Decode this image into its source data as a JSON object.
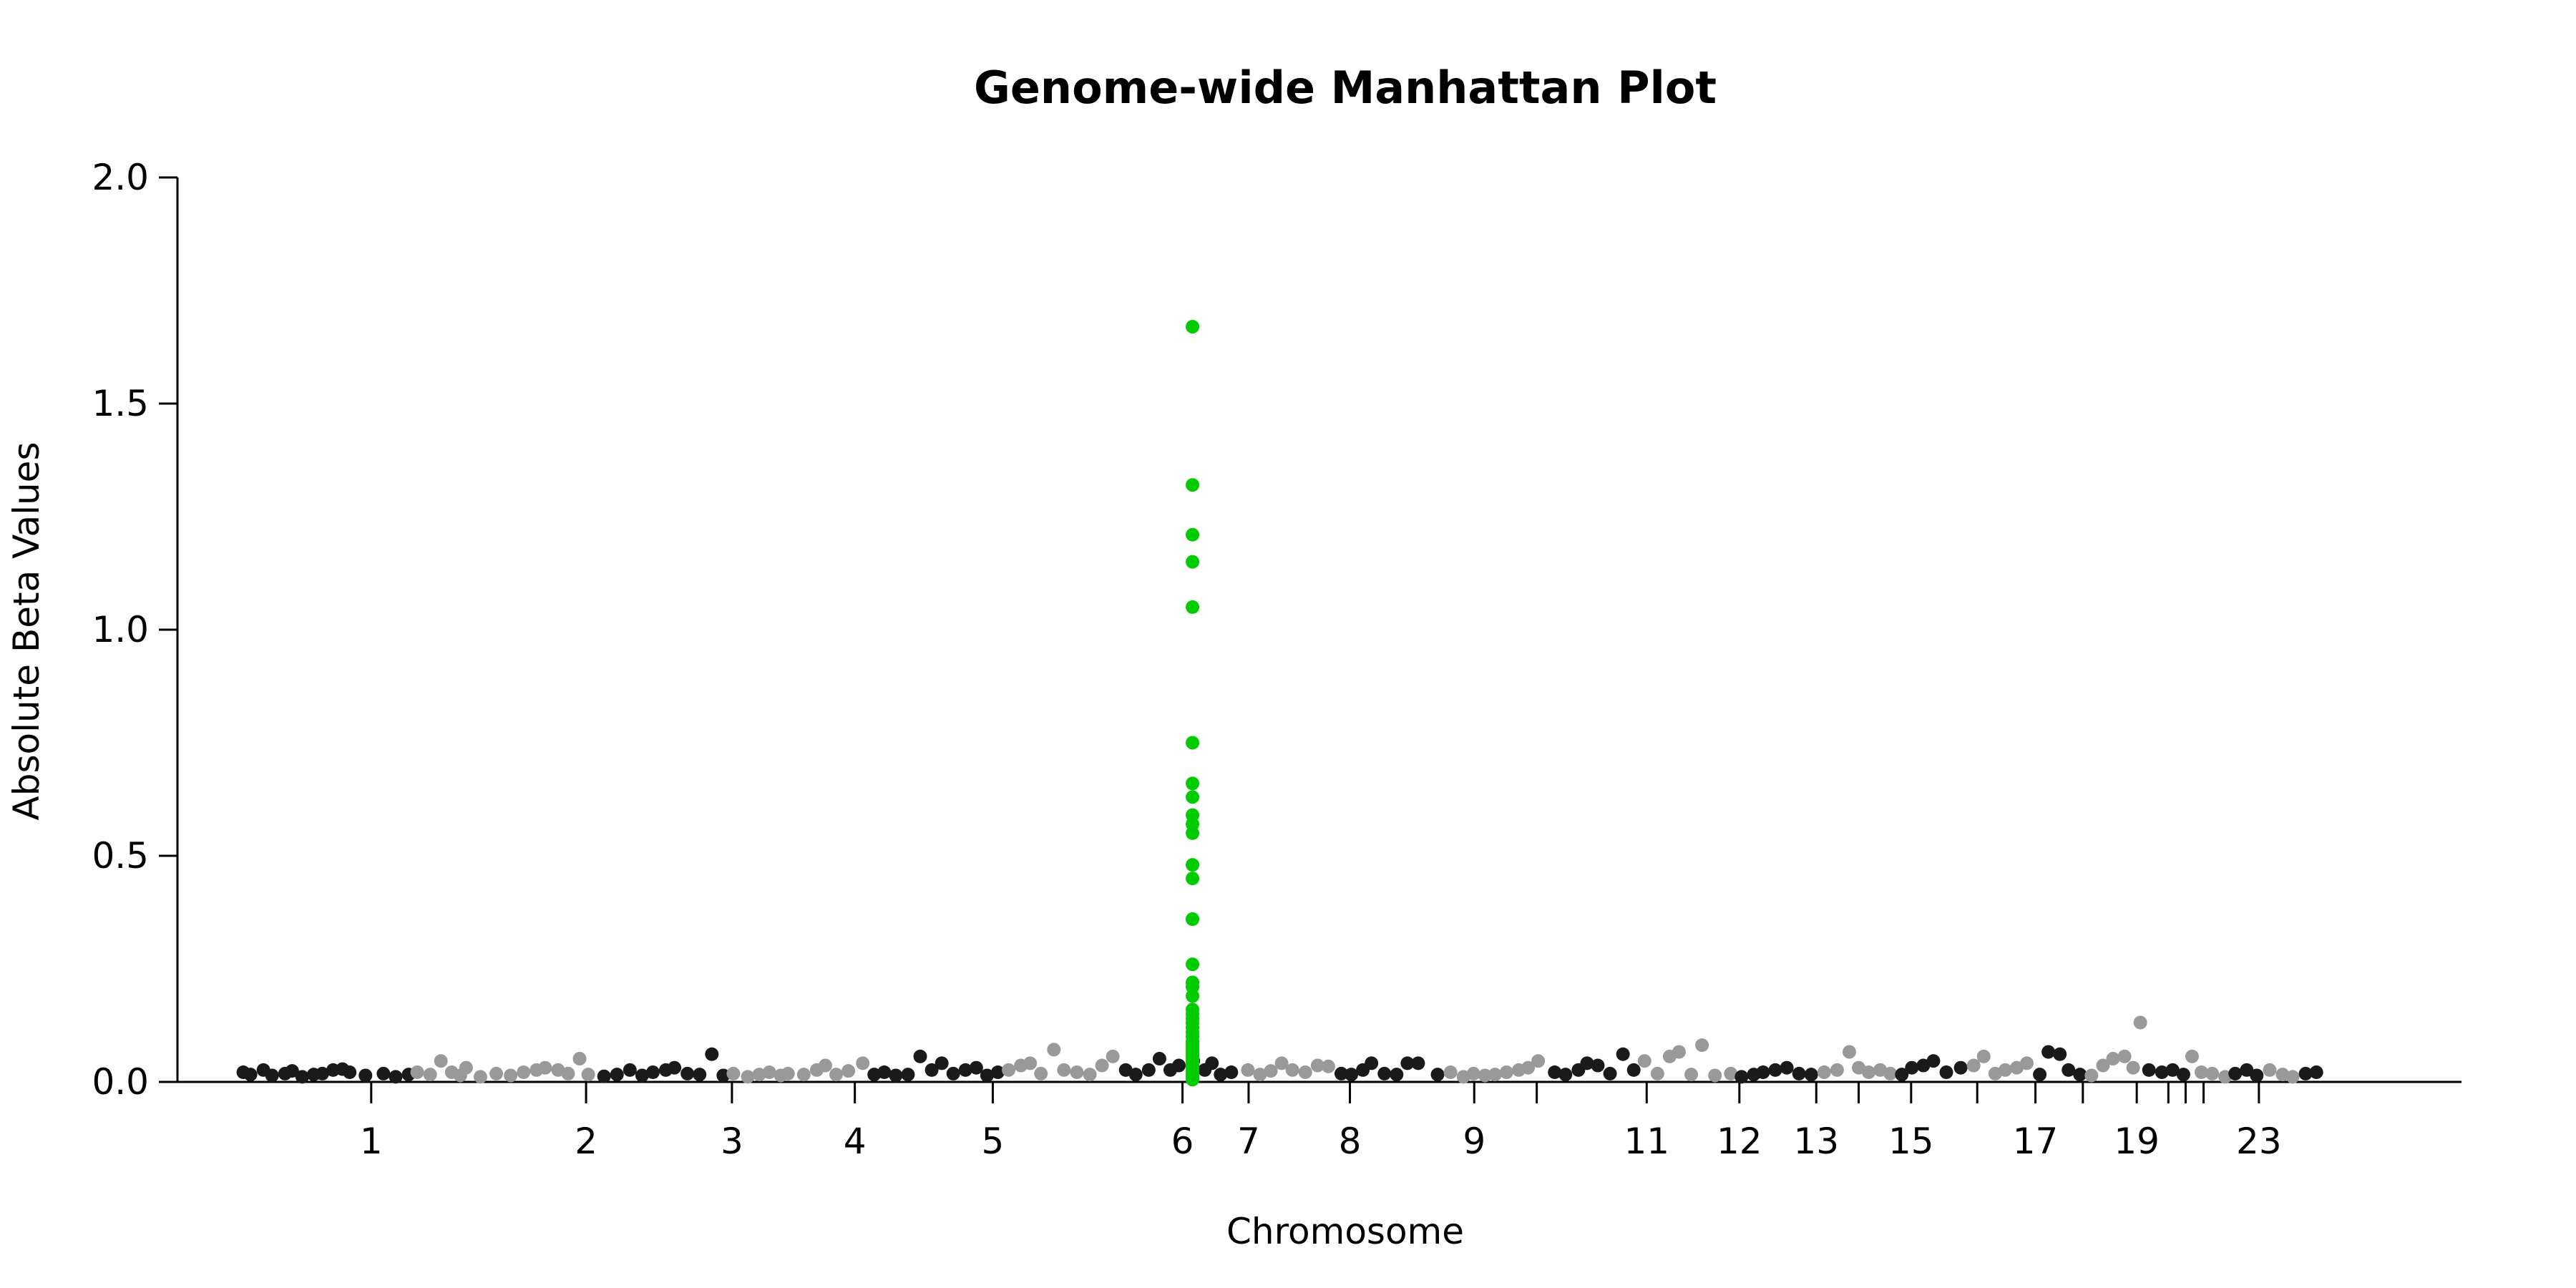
{
  "colors": {
    "dark": "#1a1a1a",
    "light": "#999999",
    "highlight": "#00cc00",
    "axis": "#000000",
    "background": "#ffffff"
  },
  "chart_data": {
    "type": "scatter",
    "title": "Genome-wide Manhattan Plot",
    "xlabel": "Chromosome",
    "ylabel": "Absolute Beta Values",
    "ylim": [
      0,
      2.0
    ],
    "yticks": [
      "0.0",
      "0.5",
      "1.0",
      "1.5",
      "2.0"
    ],
    "xlim": [
      0,
      3087
    ],
    "chromosomes": [
      {
        "label": "1",
        "start": 0,
        "length": 249
      },
      {
        "label": "",
        "start": 249,
        "length": 243
      },
      {
        "label": "3",
        "start": 492,
        "length": 198
      },
      {
        "label": "4",
        "start": 690,
        "length": 190
      },
      {
        "label": "",
        "start": 880,
        "length": 181
      },
      {
        "label": "6",
        "start": 1061,
        "length": 171
      },
      {
        "label": "",
        "start": 1232,
        "length": 159
      },
      {
        "label": "8",
        "start": 1391,
        "length": 145
      },
      {
        "label": "",
        "start": 1536,
        "length": 141
      },
      {
        "label": "",
        "start": 1677,
        "length": 136
      },
      {
        "label": "11",
        "start": 1813,
        "length": 135
      },
      {
        "label": "",
        "start": 1948,
        "length": 133
      },
      {
        "label": "13",
        "start": 2081,
        "length": 115
      },
      {
        "label": "",
        "start": 2196,
        "length": 107
      },
      {
        "label": "15",
        "start": 2303,
        "length": 102
      },
      {
        "label": "",
        "start": 2405,
        "length": 90
      },
      {
        "label": "17",
        "start": 2495,
        "length": 81
      },
      {
        "label": "",
        "start": 2576,
        "length": 78
      },
      {
        "label": "19",
        "start": 2654,
        "length": 59
      },
      {
        "label": "",
        "start": 2713,
        "length": 63
      },
      {
        "label": "",
        "start": 2776,
        "length": 48
      },
      {
        "label": "",
        "start": 2824,
        "length": 51
      },
      {
        "label": "23",
        "start": 2875,
        "length": 155
      }
    ],
    "xticks": [
      {
        "label": "1",
        "pos": 188
      },
      {
        "label": "2",
        "pos": 487
      },
      {
        "label": "3",
        "pos": 690
      },
      {
        "label": "4",
        "pos": 861
      },
      {
        "label": "5",
        "pos": 1053
      },
      {
        "label": "6",
        "pos": 1317
      },
      {
        "label": "7",
        "pos": 1409
      },
      {
        "label": "8",
        "pos": 1550
      },
      {
        "label": "9",
        "pos": 1723
      },
      {
        "label": "",
        "pos": 1810
      },
      {
        "label": "11",
        "pos": 1963
      },
      {
        "label": "12",
        "pos": 2092
      },
      {
        "label": "13",
        "pos": 2199
      },
      {
        "label": "",
        "pos": 2258
      },
      {
        "label": "15",
        "pos": 2331
      },
      {
        "label": "",
        "pos": 2423
      },
      {
        "label": "17",
        "pos": 2504
      },
      {
        "label": "",
        "pos": 2570
      },
      {
        "label": "19",
        "pos": 2645
      },
      {
        "label": "",
        "pos": 2689
      },
      {
        "label": "",
        "pos": 2713
      },
      {
        "label": "",
        "pos": 2738
      },
      {
        "label": "23",
        "pos": 2815
      }
    ],
    "highlight_points": {
      "x": 1317,
      "values": [
        1.67,
        1.32,
        1.21,
        1.15,
        1.05,
        0.75,
        0.66,
        0.63,
        0.59,
        0.57,
        0.55,
        0.48,
        0.45,
        0.36,
        0.36,
        0.26,
        0.22,
        0.21,
        0.19,
        0.16,
        0.15,
        0.14,
        0.13,
        0.12,
        0.11,
        0.1,
        0.09,
        0.085,
        0.08,
        0.075,
        0.07,
        0.065,
        0.06,
        0.055,
        0.05,
        0.045,
        0.04,
        0.035,
        0.03,
        0.025,
        0.02,
        0.015,
        0.01,
        0.005
      ]
    },
    "background_points": [
      [
        10,
        0.015
      ],
      [
        20,
        0.01
      ],
      [
        38,
        0.02
      ],
      [
        50,
        0.008
      ],
      [
        68,
        0.012
      ],
      [
        78,
        0.018
      ],
      [
        92,
        0.005
      ],
      [
        108,
        0.01
      ],
      [
        120,
        0.012
      ],
      [
        135,
        0.02
      ],
      [
        148,
        0.022
      ],
      [
        158,
        0.015
      ],
      [
        180,
        0.008
      ],
      [
        205,
        0.012
      ],
      [
        222,
        0.005
      ],
      [
        240,
        0.01
      ],
      [
        252,
        0.015
      ],
      [
        270,
        0.01
      ],
      [
        285,
        0.04
      ],
      [
        300,
        0.015
      ],
      [
        312,
        0.008
      ],
      [
        320,
        0.025
      ],
      [
        340,
        0.005
      ],
      [
        362,
        0.012
      ],
      [
        382,
        0.008
      ],
      [
        400,
        0.015
      ],
      [
        418,
        0.02
      ],
      [
        430,
        0.025
      ],
      [
        448,
        0.02
      ],
      [
        462,
        0.012
      ],
      [
        478,
        0.045
      ],
      [
        490,
        0.01
      ],
      [
        512,
        0.006
      ],
      [
        530,
        0.01
      ],
      [
        548,
        0.02
      ],
      [
        565,
        0.008
      ],
      [
        580,
        0.015
      ],
      [
        598,
        0.02
      ],
      [
        610,
        0.025
      ],
      [
        628,
        0.012
      ],
      [
        645,
        0.01
      ],
      [
        662,
        0.055
      ],
      [
        678,
        0.008
      ],
      [
        692,
        0.012
      ],
      [
        712,
        0.005
      ],
      [
        728,
        0.01
      ],
      [
        742,
        0.015
      ],
      [
        758,
        0.008
      ],
      [
        768,
        0.012
      ],
      [
        790,
        0.01
      ],
      [
        808,
        0.02
      ],
      [
        820,
        0.03
      ],
      [
        835,
        0.01
      ],
      [
        852,
        0.018
      ],
      [
        872,
        0.035
      ],
      [
        888,
        0.01
      ],
      [
        902,
        0.015
      ],
      [
        918,
        0.008
      ],
      [
        935,
        0.01
      ],
      [
        952,
        0.05
      ],
      [
        968,
        0.02
      ],
      [
        982,
        0.035
      ],
      [
        998,
        0.012
      ],
      [
        1015,
        0.02
      ],
      [
        1030,
        0.025
      ],
      [
        1045,
        0.008
      ],
      [
        1060,
        0.015
      ],
      [
        1075,
        0.02
      ],
      [
        1092,
        0.03
      ],
      [
        1105,
        0.035
      ],
      [
        1120,
        0.012
      ],
      [
        1138,
        0.065
      ],
      [
        1152,
        0.02
      ],
      [
        1170,
        0.015
      ],
      [
        1188,
        0.01
      ],
      [
        1205,
        0.03
      ],
      [
        1220,
        0.05
      ],
      [
        1238,
        0.02
      ],
      [
        1252,
        0.01
      ],
      [
        1270,
        0.02
      ],
      [
        1285,
        0.045
      ],
      [
        1300,
        0.02
      ],
      [
        1312,
        0.03
      ],
      [
        1332,
        0.04
      ],
      [
        1348,
        0.02
      ],
      [
        1358,
        0.035
      ],
      [
        1370,
        0.01
      ],
      [
        1385,
        0.015
      ],
      [
        1408,
        0.02
      ],
      [
        1425,
        0.01
      ],
      [
        1440,
        0.018
      ],
      [
        1455,
        0.035
      ],
      [
        1470,
        0.02
      ],
      [
        1488,
        0.015
      ],
      [
        1505,
        0.03
      ],
      [
        1520,
        0.028
      ],
      [
        1538,
        0.012
      ],
      [
        1552,
        0.01
      ],
      [
        1568,
        0.02
      ],
      [
        1580,
        0.035
      ],
      [
        1598,
        0.012
      ],
      [
        1615,
        0.01
      ],
      [
        1630,
        0.035
      ],
      [
        1645,
        0.035
      ],
      [
        1672,
        0.01
      ],
      [
        1690,
        0.015
      ],
      [
        1708,
        0.005
      ],
      [
        1722,
        0.012
      ],
      [
        1738,
        0.008
      ],
      [
        1752,
        0.01
      ],
      [
        1768,
        0.015
      ],
      [
        1785,
        0.02
      ],
      [
        1798,
        0.025
      ],
      [
        1812,
        0.04
      ],
      [
        1835,
        0.015
      ],
      [
        1850,
        0.01
      ],
      [
        1868,
        0.02
      ],
      [
        1880,
        0.035
      ],
      [
        1895,
        0.03
      ],
      [
        1912,
        0.012
      ],
      [
        1930,
        0.055
      ],
      [
        1945,
        0.02
      ],
      [
        1960,
        0.04
      ],
      [
        1978,
        0.012
      ],
      [
        1995,
        0.05
      ],
      [
        2008,
        0.06
      ],
      [
        2025,
        0.01
      ],
      [
        2040,
        0.075
      ],
      [
        2058,
        0.008
      ],
      [
        2080,
        0.012
      ],
      [
        2095,
        0.005
      ],
      [
        2112,
        0.01
      ],
      [
        2125,
        0.015
      ],
      [
        2142,
        0.02
      ],
      [
        2158,
        0.025
      ],
      [
        2175,
        0.012
      ],
      [
        2192,
        0.01
      ],
      [
        2210,
        0.015
      ],
      [
        2228,
        0.02
      ],
      [
        2245,
        0.06
      ],
      [
        2258,
        0.025
      ],
      [
        2272,
        0.015
      ],
      [
        2288,
        0.02
      ],
      [
        2302,
        0.012
      ],
      [
        2318,
        0.01
      ],
      [
        2332,
        0.025
      ],
      [
        2348,
        0.03
      ],
      [
        2362,
        0.04
      ],
      [
        2380,
        0.015
      ],
      [
        2400,
        0.025
      ],
      [
        2418,
        0.03
      ],
      [
        2432,
        0.05
      ],
      [
        2448,
        0.012
      ],
      [
        2462,
        0.02
      ],
      [
        2478,
        0.025
      ],
      [
        2492,
        0.035
      ],
      [
        2510,
        0.01
      ],
      [
        2522,
        0.06
      ],
      [
        2538,
        0.055
      ],
      [
        2550,
        0.02
      ],
      [
        2566,
        0.01
      ],
      [
        2582,
        0.008
      ],
      [
        2598,
        0.03
      ],
      [
        2612,
        0.045
      ],
      [
        2628,
        0.05
      ],
      [
        2640,
        0.025
      ],
      [
        2650,
        0.125
      ],
      [
        2662,
        0.02
      ],
      [
        2680,
        0.015
      ],
      [
        2695,
        0.02
      ],
      [
        2710,
        0.01
      ],
      [
        2722,
        0.05
      ],
      [
        2735,
        0.015
      ],
      [
        2750,
        0.012
      ],
      [
        2768,
        0.005
      ],
      [
        2782,
        0.012
      ],
      [
        2798,
        0.02
      ],
      [
        2812,
        0.008
      ],
      [
        2830,
        0.02
      ],
      [
        2848,
        0.01
      ],
      [
        2862,
        0.005
      ],
      [
        2880,
        0.012
      ],
      [
        2895,
        0.015
      ]
    ]
  }
}
